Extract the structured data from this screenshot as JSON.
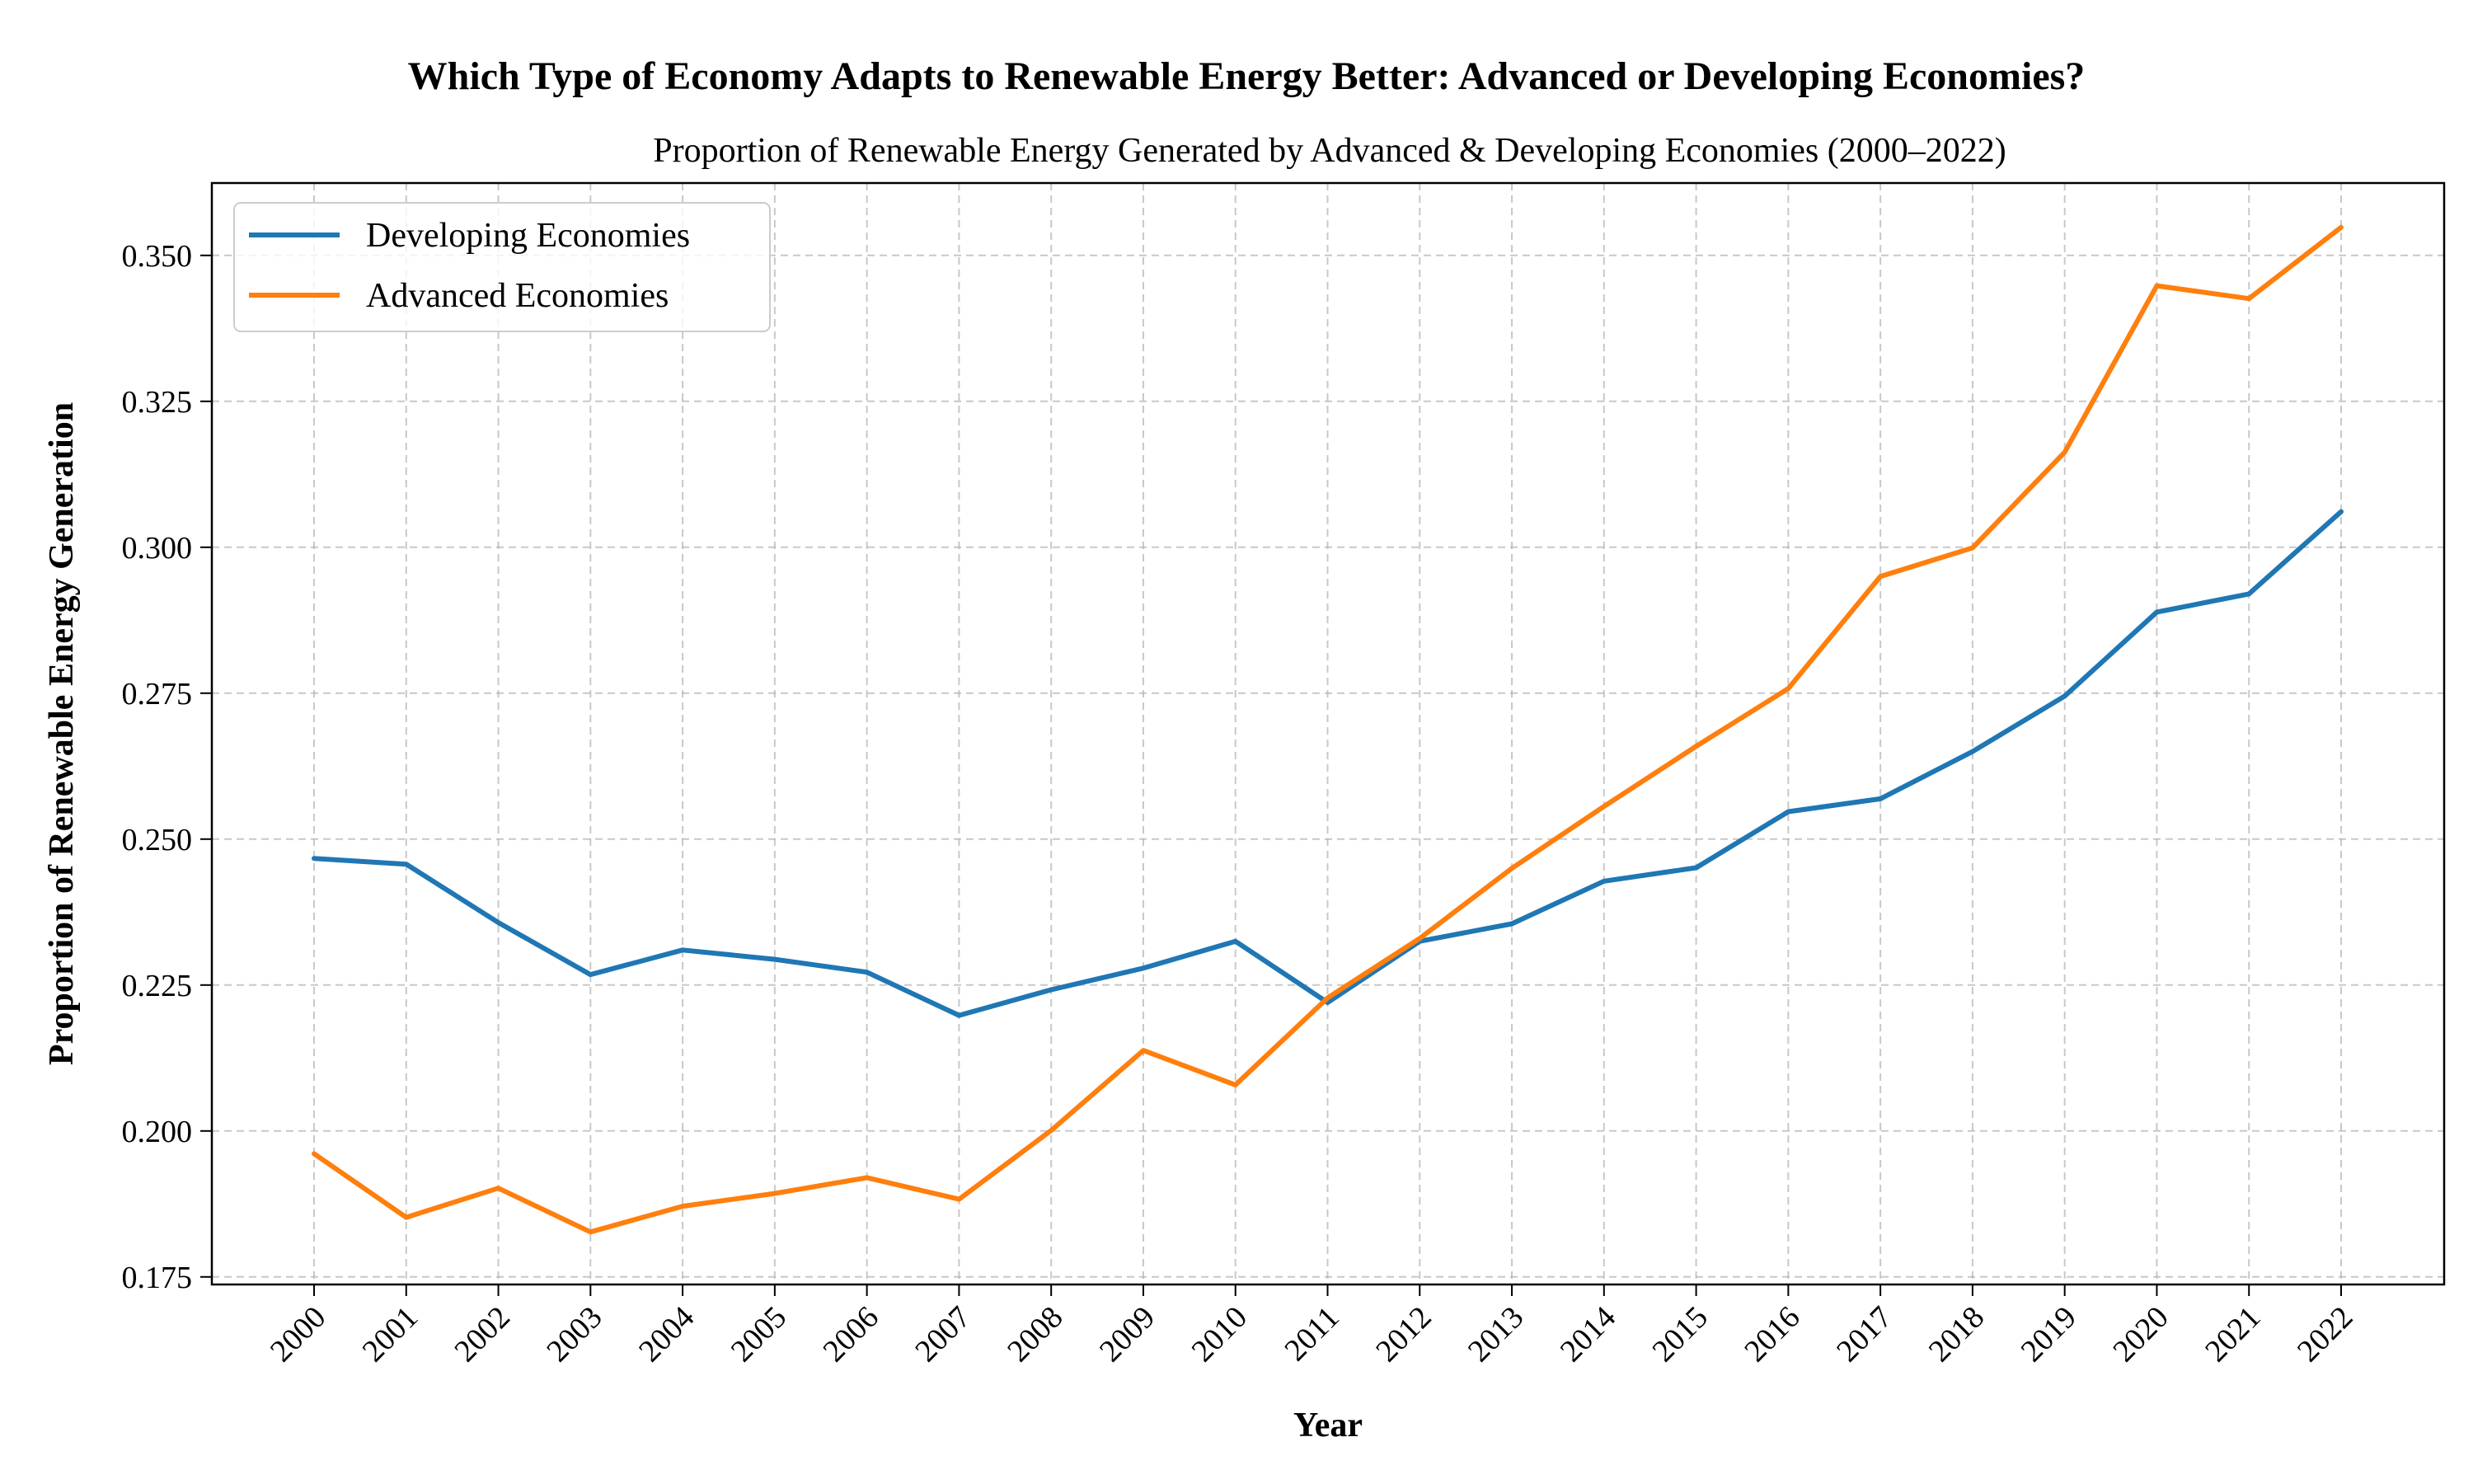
{
  "chart_data": {
    "type": "line",
    "title": "Which Type of Economy Adapts to Renewable Energy Better: Advanced or Developing Economies?",
    "subtitle": "Proportion of Renewable Energy Generated by Advanced & Developing Economies (2000–2022)",
    "xlabel": "Year",
    "ylabel": "Proportion of Renewable Energy Generation",
    "x": [
      "2000",
      "2001",
      "2002",
      "2003",
      "2004",
      "2005",
      "2006",
      "2007",
      "2008",
      "2009",
      "2010",
      "2011",
      "2012",
      "2013",
      "2014",
      "2015",
      "2016",
      "2017",
      "2018",
      "2019",
      "2020",
      "2021",
      "2022"
    ],
    "yticks": [
      "0.175",
      "0.200",
      "0.225",
      "0.250",
      "0.275",
      "0.300",
      "0.325",
      "0.350"
    ],
    "ylim": [
      0.1737,
      0.3624
    ],
    "grid": true,
    "legend_position": "top-left",
    "series": [
      {
        "name": "Developing Economies",
        "color": "#1f77b4",
        "values": [
          0.2467,
          0.2457,
          0.2357,
          0.2268,
          0.231,
          0.2294,
          0.2272,
          0.2198,
          0.2242,
          0.2279,
          0.2325,
          0.222,
          0.2325,
          0.2355,
          0.2428,
          0.2451,
          0.2547,
          0.2569,
          0.265,
          0.2745,
          0.2889,
          0.292,
          0.3061
        ]
      },
      {
        "name": "Advanced Economies",
        "color": "#ff7f0e",
        "values": [
          0.1961,
          0.1852,
          0.1902,
          0.1827,
          0.1871,
          0.1893,
          0.192,
          0.1883,
          0.2001,
          0.2138,
          0.2079,
          0.2228,
          0.233,
          0.245,
          0.2556,
          0.2659,
          0.2758,
          0.295,
          0.2999,
          0.3163,
          0.3448,
          0.3426,
          0.3548
        ]
      }
    ]
  }
}
